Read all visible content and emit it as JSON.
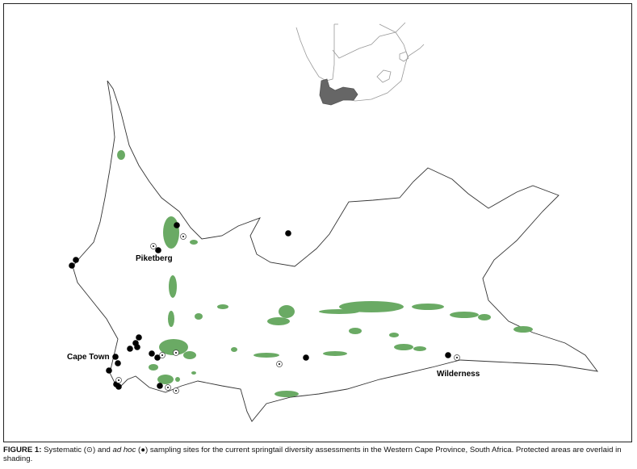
{
  "figure": {
    "caption_label": "FIGURE 1:",
    "caption_part1": " Systematic (",
    "systematic_symbol": "⊙",
    "caption_part2": ") and ",
    "caption_italic": "ad hoc",
    "caption_part3": " (",
    "adhoc_symbol": "●",
    "caption_part4": ") sampling sites for the current springtail diversity assessments in the Western Cape Province, South Africa. Protected areas are overlaid in shading."
  },
  "map": {
    "place_labels": {
      "piketberg": "Piketberg",
      "cape_town": "Cape Town",
      "wilderness": "Wilderness"
    },
    "colors": {
      "protected_area": "#6aaa64",
      "inset_province": "#666666",
      "outline": "#333333",
      "site": "#000000"
    }
  }
}
